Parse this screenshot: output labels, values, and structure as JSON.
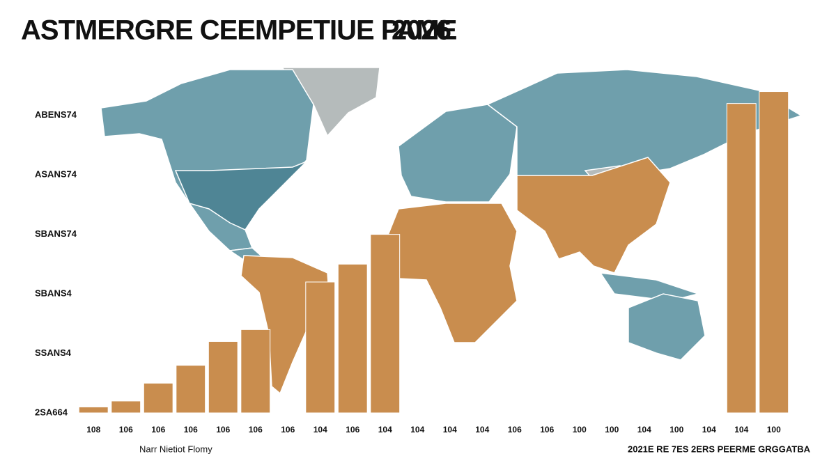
{
  "chart_data": {
    "type": "bar",
    "title": "ASTMERGRE CEEMPETIUE PAME",
    "title_year": "2026",
    "xlabel": "Narr Nietiot Flomy",
    "source": "2021E RE 7ES 2ERS PEERME GRGGATBA",
    "categories": [
      "108",
      "106",
      "106",
      "106",
      "106",
      "106",
      "106",
      "104",
      "106",
      "104",
      "104",
      "104",
      "104",
      "106",
      "106",
      "100",
      "100",
      "104",
      "100",
      "104",
      "104",
      "100"
    ],
    "values": [
      0.1,
      0.2,
      0.5,
      0.8,
      1.2,
      1.4,
      null,
      2.2,
      2.5,
      3.0,
      null,
      null,
      null,
      null,
      null,
      null,
      null,
      null,
      null,
      null,
      5.2,
      5.4
    ],
    "color": "#c98d4e",
    "ylim": [
      0,
      5.5
    ],
    "yticks": [
      {
        "value": 0,
        "label": "2SA664"
      },
      {
        "value": 1,
        "label": "SSANS4"
      },
      {
        "value": 2,
        "label": "SBANS4"
      },
      {
        "value": 3,
        "label": "SBANS74"
      },
      {
        "value": 4,
        "label": "ASANS74"
      },
      {
        "value": 5,
        "label": "ABENS74"
      }
    ],
    "grid": false
  }
}
